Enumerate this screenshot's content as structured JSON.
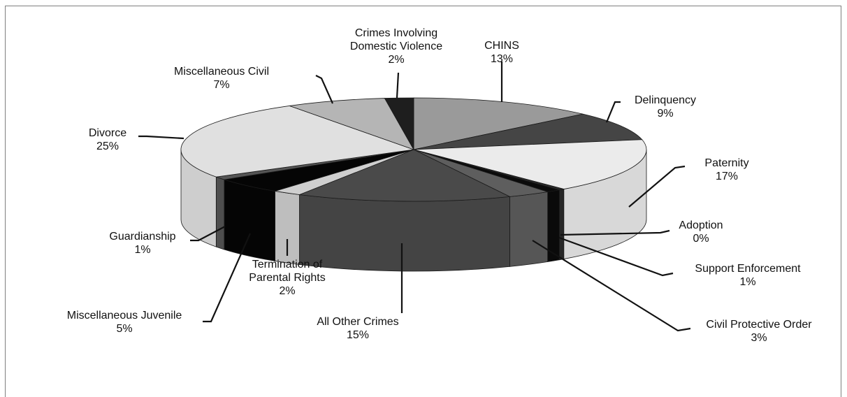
{
  "chart_data": {
    "type": "pie",
    "style": "3d-exploded-perspective",
    "slices": [
      {
        "name": "CHINS",
        "percent_label": "13%",
        "value": 13,
        "color": "#9a9a9a"
      },
      {
        "name": "Delinquency",
        "percent_label": "9%",
        "value": 9,
        "color": "#454545"
      },
      {
        "name": "Paternity",
        "percent_label": "17%",
        "value": 17,
        "color": "#ebebeb"
      },
      {
        "name": "Adoption",
        "percent_label": "0%",
        "value": 0.4,
        "color": "#2a2a2a"
      },
      {
        "name": "Support Enforcement",
        "percent_label": "1%",
        "value": 1,
        "color": "#0b0b0b"
      },
      {
        "name": "Civil Protective Order",
        "percent_label": "3%",
        "value": 3,
        "color": "#5e5e5e"
      },
      {
        "name": "All Other Crimes",
        "percent_label": "15%",
        "value": 15,
        "color": "#4a4a4a"
      },
      {
        "name": "Termination of Parental Rights",
        "percent_label": "2%",
        "value": 2,
        "color": "#cfcfcf"
      },
      {
        "name": "Miscellaneous Juvenile",
        "percent_label": "5%",
        "value": 5,
        "color": "#050505"
      },
      {
        "name": "Guardianship",
        "percent_label": "1%",
        "value": 1,
        "color": "#555555"
      },
      {
        "name": "Divorce",
        "percent_label": "25%",
        "value": 25,
        "color": "#e0e0e0"
      },
      {
        "name": "Miscellaneous Civil",
        "percent_label": "7%",
        "value": 7,
        "color": "#b5b5b5"
      },
      {
        "name": "Crimes Involving Domestic Violence",
        "percent_label": "2%",
        "value": 2,
        "color": "#1e1e1e"
      }
    ],
    "labels": [
      {
        "lines": [
          "CHINS",
          "13%"
        ]
      },
      {
        "lines": [
          "Delinquency",
          "9%"
        ]
      },
      {
        "lines": [
          "Paternity",
          "17%"
        ]
      },
      {
        "lines": [
          "Adoption",
          "0%"
        ]
      },
      {
        "lines": [
          "Support Enforcement",
          "1%"
        ]
      },
      {
        "lines": [
          "Civil Protective Order",
          "3%"
        ]
      },
      {
        "lines": [
          "All Other Crimes",
          "15%"
        ]
      },
      {
        "lines": [
          "Termination of",
          "Parental Rights",
          "2%"
        ]
      },
      {
        "lines": [
          "Miscellaneous Juvenile",
          "5%"
        ]
      },
      {
        "lines": [
          "Guardianship",
          "1%"
        ]
      },
      {
        "lines": [
          "Divorce",
          "25%"
        ]
      },
      {
        "lines": [
          "Miscellaneous Civil",
          "7%"
        ]
      },
      {
        "lines": [
          "Crimes Involving",
          "Domestic Violence",
          "2%"
        ]
      }
    ]
  }
}
